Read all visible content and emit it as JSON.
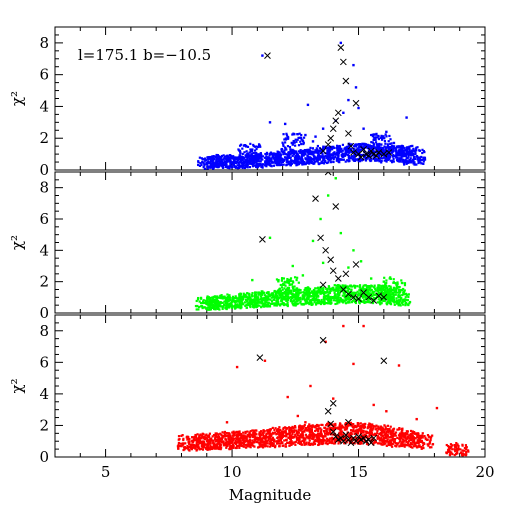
{
  "chart_data": [
    {
      "type": "scatter",
      "panel": "top",
      "annotation": "l=175.1 b=−10.5",
      "xlabel": "",
      "ylabel": "χ²",
      "xlim": [
        3,
        20
      ],
      "ylim": [
        0,
        9
      ],
      "y_ticks": [
        0,
        2,
        4,
        6,
        8
      ],
      "color": "#0000ff",
      "series": [
        {
          "marker": "dot",
          "color": "#0000ff",
          "points": [
            [
              9.1,
              0.45
            ],
            [
              9.4,
              0.5
            ],
            [
              9.8,
              0.55
            ],
            [
              10.2,
              0.5
            ],
            [
              10.6,
              0.6
            ],
            [
              11.0,
              0.55
            ],
            [
              11.4,
              0.65
            ],
            [
              11.8,
              0.7
            ],
            [
              12.2,
              0.75
            ],
            [
              12.6,
              0.8
            ],
            [
              13.0,
              0.85
            ],
            [
              13.4,
              0.9
            ],
            [
              13.8,
              1.0
            ],
            [
              14.2,
              1.0
            ],
            [
              14.6,
              1.1
            ],
            [
              15.0,
              1.1
            ],
            [
              15.4,
              1.1
            ],
            [
              15.8,
              1.0
            ],
            [
              16.2,
              1.0
            ],
            [
              16.6,
              1.0
            ],
            [
              17.0,
              1.0
            ],
            [
              17.2,
              0.8
            ],
            [
              12.9,
              2.2
            ],
            [
              13.2,
              1.8
            ],
            [
              13.6,
              2.6
            ],
            [
              14.1,
              3.1
            ],
            [
              14.4,
              3.6
            ],
            [
              14.6,
              4.4
            ],
            [
              14.9,
              5.2
            ],
            [
              15.2,
              2.6
            ],
            [
              15.6,
              1.9
            ],
            [
              16.1,
              2.4
            ],
            [
              16.9,
              3.3
            ],
            [
              12.1,
              2.9
            ],
            [
              11.5,
              3.0
            ],
            [
              11.2,
              7.2
            ],
            [
              14.3,
              8.0
            ],
            [
              14.8,
              6.6
            ],
            [
              13.3,
              2.1
            ],
            [
              15.9,
              1.6
            ],
            [
              16.4,
              1.7
            ],
            [
              10.7,
              1.1
            ],
            [
              13.0,
              4.1
            ],
            [
              12.4,
              1.6
            ],
            [
              15.0,
              3.9
            ]
          ]
        },
        {
          "marker": "cross",
          "color": "#000000",
          "points": [
            [
              11.4,
              7.2
            ],
            [
              13.6,
              1.2
            ],
            [
              13.9,
              2.0
            ],
            [
              14.1,
              3.1
            ],
            [
              14.2,
              3.6
            ],
            [
              14.3,
              7.7
            ],
            [
              14.4,
              6.8
            ],
            [
              14.5,
              5.6
            ],
            [
              14.6,
              2.3
            ],
            [
              14.7,
              1.5
            ],
            [
              14.8,
              1.1
            ],
            [
              14.9,
              4.2
            ],
            [
              15.0,
              1.0
            ],
            [
              15.1,
              0.8
            ],
            [
              15.2,
              1.3
            ],
            [
              15.3,
              1.0
            ],
            [
              15.4,
              0.9
            ],
            [
              15.5,
              1.2
            ],
            [
              15.6,
              1.0
            ],
            [
              15.7,
              0.9
            ],
            [
              15.8,
              1.1
            ],
            [
              16.0,
              1.0
            ],
            [
              16.2,
              1.1
            ],
            [
              14.0,
              2.6
            ],
            [
              13.8,
              1.6
            ]
          ]
        }
      ]
    },
    {
      "type": "scatter",
      "panel": "middle",
      "xlabel": "",
      "ylabel": "χ²",
      "xlim": [
        3,
        20
      ],
      "ylim": [
        0,
        9
      ],
      "y_ticks": [
        0,
        2,
        4,
        6,
        8
      ],
      "color": "#00ff00",
      "series": [
        {
          "marker": "dot",
          "color": "#00ff00",
          "points": [
            [
              9.0,
              0.6
            ],
            [
              9.4,
              0.65
            ],
            [
              9.8,
              0.7
            ],
            [
              10.2,
              0.75
            ],
            [
              10.6,
              0.8
            ],
            [
              11.0,
              0.85
            ],
            [
              11.4,
              0.9
            ],
            [
              11.8,
              0.95
            ],
            [
              12.2,
              1.0
            ],
            [
              12.6,
              1.0
            ],
            [
              13.0,
              1.05
            ],
            [
              13.4,
              1.1
            ],
            [
              13.8,
              1.1
            ],
            [
              14.2,
              1.2
            ],
            [
              14.6,
              1.2
            ],
            [
              15.0,
              1.2
            ],
            [
              15.4,
              1.2
            ],
            [
              15.8,
              1.2
            ],
            [
              16.2,
              1.1
            ],
            [
              16.6,
              1.0
            ],
            [
              12.4,
              3.0
            ],
            [
              12.8,
              2.4
            ],
            [
              13.2,
              4.6
            ],
            [
              13.5,
              6.0
            ],
            [
              13.8,
              7.5
            ],
            [
              14.1,
              8.6
            ],
            [
              14.3,
              5.1
            ],
            [
              14.6,
              2.9
            ],
            [
              15.1,
              3.3
            ],
            [
              15.5,
              2.2
            ],
            [
              16.0,
              2.0
            ],
            [
              11.5,
              4.8
            ],
            [
              10.8,
              2.1
            ],
            [
              14.8,
              4.0
            ],
            [
              13.6,
              3.2
            ],
            [
              12.2,
              1.6
            ],
            [
              16.4,
              1.6
            ]
          ]
        },
        {
          "marker": "cross",
          "color": "#000000",
          "points": [
            [
              11.2,
              4.7
            ],
            [
              13.3,
              7.3
            ],
            [
              13.5,
              4.8
            ],
            [
              13.7,
              4.0
            ],
            [
              13.8,
              9.0
            ],
            [
              13.9,
              3.4
            ],
            [
              14.0,
              2.7
            ],
            [
              14.1,
              6.8
            ],
            [
              14.2,
              2.2
            ],
            [
              14.4,
              1.5
            ],
            [
              14.6,
              1.2
            ],
            [
              14.8,
              1.0
            ],
            [
              15.0,
              0.9
            ],
            [
              15.2,
              1.3
            ],
            [
              15.4,
              1.0
            ],
            [
              15.6,
              0.8
            ],
            [
              15.8,
              1.1
            ],
            [
              16.0,
              1.0
            ],
            [
              14.9,
              3.1
            ],
            [
              14.5,
              2.5
            ],
            [
              13.6,
              1.8
            ]
          ]
        }
      ]
    },
    {
      "type": "scatter",
      "panel": "bottom",
      "xlabel": "Magnitude",
      "ylabel": "χ²",
      "xlim": [
        3,
        20
      ],
      "ylim": [
        0,
        9
      ],
      "x_ticks": [
        5,
        10,
        15,
        20
      ],
      "y_ticks": [
        0,
        2,
        4,
        6,
        8
      ],
      "color": "#ff0000",
      "series": [
        {
          "marker": "dot",
          "color": "#ff0000",
          "points": [
            [
              8.3,
              0.9
            ],
            [
              8.7,
              0.95
            ],
            [
              9.1,
              1.0
            ],
            [
              9.5,
              1.0
            ],
            [
              9.9,
              1.05
            ],
            [
              10.3,
              1.1
            ],
            [
              10.7,
              1.1
            ],
            [
              11.1,
              1.15
            ],
            [
              11.5,
              1.2
            ],
            [
              11.9,
              1.25
            ],
            [
              12.3,
              1.3
            ],
            [
              12.7,
              1.35
            ],
            [
              13.1,
              1.4
            ],
            [
              13.5,
              1.45
            ],
            [
              13.9,
              1.5
            ],
            [
              14.3,
              1.5
            ],
            [
              14.7,
              1.5
            ],
            [
              15.1,
              1.5
            ],
            [
              15.5,
              1.45
            ],
            [
              15.9,
              1.4
            ],
            [
              16.3,
              1.3
            ],
            [
              16.7,
              1.2
            ],
            [
              17.1,
              1.1
            ],
            [
              17.5,
              1.0
            ],
            [
              10.2,
              5.7
            ],
            [
              11.3,
              6.1
            ],
            [
              12.2,
              3.8
            ],
            [
              12.6,
              2.6
            ],
            [
              13.1,
              4.5
            ],
            [
              13.7,
              7.3
            ],
            [
              14.4,
              8.3
            ],
            [
              14.8,
              5.9
            ],
            [
              15.2,
              8.3
            ],
            [
              15.6,
              3.3
            ],
            [
              16.1,
              2.9
            ],
            [
              16.6,
              5.8
            ],
            [
              17.3,
              2.4
            ],
            [
              18.1,
              3.1
            ],
            [
              18.9,
              0.5
            ],
            [
              9.8,
              2.2
            ],
            [
              12.9,
              2.2
            ],
            [
              14.0,
              3.7
            ]
          ]
        },
        {
          "marker": "cross",
          "color": "#000000",
          "points": [
            [
              11.1,
              6.3
            ],
            [
              13.6,
              7.4
            ],
            [
              13.8,
              2.9
            ],
            [
              13.9,
              2.1
            ],
            [
              14.0,
              1.6
            ],
            [
              14.1,
              1.3
            ],
            [
              14.2,
              1.1
            ],
            [
              14.3,
              1.2
            ],
            [
              14.4,
              1.0
            ],
            [
              14.5,
              1.4
            ],
            [
              14.6,
              1.1
            ],
            [
              14.7,
              0.9
            ],
            [
              14.8,
              1.2
            ],
            [
              14.9,
              1.0
            ],
            [
              15.0,
              1.3
            ],
            [
              15.1,
              1.1
            ],
            [
              15.2,
              1.2
            ],
            [
              15.3,
              1.0
            ],
            [
              15.4,
              1.1
            ],
            [
              15.5,
              0.9
            ],
            [
              15.6,
              1.2
            ],
            [
              16.0,
              6.1
            ],
            [
              14.0,
              3.4
            ],
            [
              14.6,
              2.2
            ]
          ]
        }
      ]
    }
  ]
}
